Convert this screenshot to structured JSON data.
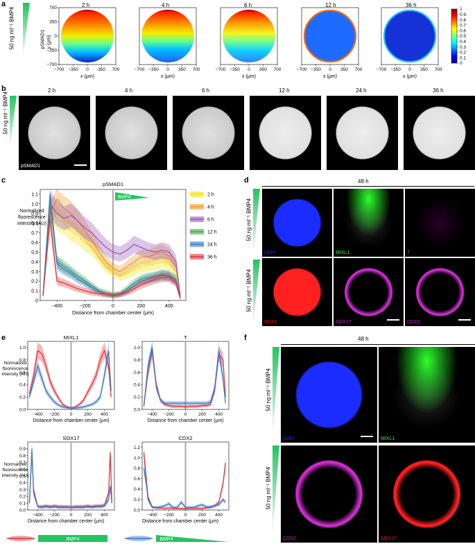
{
  "panel_letters": {
    "a": "a",
    "b": "b",
    "c": "c",
    "d": "d",
    "e": "e",
    "f": "f"
  },
  "bmp4_concentration": "50 ng ml⁻¹ BMP4",
  "panel_a": {
    "times": [
      "2 h",
      "4 h",
      "6 h",
      "12 h",
      "36 h"
    ],
    "ylabel_top": "pSMAD1",
    "ylabel": "y (μm)",
    "xlabel": "x (μm)",
    "xticks": [
      "−700",
      "−350",
      "0",
      "350",
      "700"
    ],
    "yticks": [
      "700",
      "350",
      "0",
      "−350",
      "−700"
    ],
    "colorbar_ticks": [
      "1",
      "0.9",
      "0.8",
      "0.7",
      "0.6",
      "0.5",
      "0.4",
      "0.3",
      "0.2",
      "0.1",
      "0"
    ]
  },
  "panel_b": {
    "times": [
      "2 h",
      "4 h",
      "6 h",
      "12 h",
      "24 h",
      "36 h"
    ],
    "stain": "pSMAD1"
  },
  "panel_c": {
    "title": "pSMAD1",
    "ylabel": "Normalized fluorescence intensity (AU)",
    "xlabel": "Distance from chamber center (μm)",
    "gradient_label": "BMP4",
    "xticks": [
      "−400",
      "−200",
      "0",
      "200",
      "400"
    ],
    "yticks": [
      "0",
      "0.1",
      "0.2",
      "0.3",
      "0.4",
      "0.5",
      "0.6",
      "0.7",
      "0.8",
      "0.9",
      "1.0",
      "1.1"
    ]
  },
  "panel_d": {
    "time": "48 h",
    "labels_row1": [
      "DAPI",
      "MIXL1",
      "T"
    ],
    "labels_row2": [
      "SOX2",
      "SOX17",
      "CDX2"
    ]
  },
  "panel_e": {
    "titles": [
      "MIXL1",
      "T",
      "SOX17",
      "CDX2"
    ],
    "ylabel": "Normalized fluorescence intensity (AU)",
    "xlabel": "Distance from chamber center (μm)",
    "xticks": [
      "−400",
      "−200",
      "0",
      "200",
      "400"
    ],
    "legend_label": "BMP4"
  },
  "panel_f": {
    "time": "48 h",
    "labels_row1": [
      "DAPI",
      "MIXL1"
    ],
    "labels_row2": [
      "CDX2",
      "SOX17"
    ]
  },
  "colors": {
    "bmp4_green": "#22c55e",
    "red_series": "#e0363d",
    "blue_series": "#3a7bc8",
    "dapi": "#1b2cff",
    "mixl1": "#2cff2c",
    "magenta": "#d02cd0",
    "sox2": "#ff2020"
  },
  "chart_data": [
    {
      "type": "line",
      "title": "pSMAD1",
      "xlabel": "Distance from chamber center (μm)",
      "ylabel": "Normalized fluorescence intensity (AU)",
      "xlim": [
        -520,
        520
      ],
      "ylim": [
        0,
        1.15
      ],
      "x": [
        -500,
        -450,
        -400,
        -350,
        -300,
        -250,
        -200,
        -150,
        -100,
        -50,
        0,
        50,
        100,
        150,
        200,
        250,
        300,
        350,
        400,
        450,
        480
      ],
      "series": [
        {
          "name": "2 h",
          "color": "#f2e21b",
          "values": [
            0.05,
            0.95,
            0.85,
            0.8,
            0.72,
            0.68,
            0.6,
            0.55,
            0.45,
            0.35,
            0.3,
            0.25,
            0.28,
            0.32,
            0.35,
            0.37,
            0.38,
            0.4,
            0.38,
            0.3,
            0.05
          ]
        },
        {
          "name": "4 h",
          "color": "#f29a2e",
          "values": [
            0.05,
            0.9,
            1.05,
            0.95,
            0.9,
            0.82,
            0.72,
            0.62,
            0.5,
            0.4,
            0.33,
            0.3,
            0.35,
            0.4,
            0.45,
            0.45,
            0.48,
            0.5,
            0.46,
            0.35,
            0.05
          ]
        },
        {
          "name": "6 h",
          "color": "#9b59b6",
          "values": [
            0.05,
            1.0,
            0.9,
            0.85,
            0.88,
            0.82,
            0.75,
            0.7,
            0.62,
            0.55,
            0.5,
            0.48,
            0.52,
            0.58,
            0.55,
            0.52,
            0.5,
            0.52,
            0.5,
            0.4,
            0.05
          ]
        },
        {
          "name": "12 h",
          "color": "#3cab4b",
          "values": [
            0.05,
            1.05,
            0.4,
            0.35,
            0.3,
            0.25,
            0.2,
            0.15,
            0.1,
            0.08,
            0.06,
            0.07,
            0.12,
            0.18,
            0.22,
            0.24,
            0.25,
            0.27,
            0.26,
            0.22,
            0.03
          ]
        },
        {
          "name": "24 h",
          "color": "#3a7bc8",
          "values": [
            0.05,
            1.1,
            0.38,
            0.32,
            0.28,
            0.22,
            0.18,
            0.13,
            0.09,
            0.06,
            0.05,
            0.06,
            0.1,
            0.15,
            0.2,
            0.22,
            0.24,
            0.26,
            0.25,
            0.2,
            0.03
          ]
        },
        {
          "name": "36 h",
          "color": "#e0363d",
          "values": [
            0.05,
            0.85,
            0.2,
            0.18,
            0.15,
            0.12,
            0.1,
            0.08,
            0.07,
            0.06,
            0.05,
            0.06,
            0.08,
            0.12,
            0.16,
            0.19,
            0.22,
            0.24,
            0.24,
            0.18,
            0.02
          ]
        }
      ]
    },
    {
      "type": "line",
      "title": "MIXL1",
      "xlim": [
        -520,
        520
      ],
      "ylim": [
        0,
        1.1
      ],
      "x": [
        -500,
        -450,
        -400,
        -350,
        -300,
        -250,
        -200,
        -150,
        -100,
        -50,
        0,
        50,
        100,
        150,
        200,
        250,
        300,
        350,
        400,
        450,
        480
      ],
      "series": [
        {
          "color": "#e0363d",
          "values": [
            0.25,
            0.55,
            0.95,
            0.9,
            0.7,
            0.45,
            0.3,
            0.18,
            0.08,
            0.04,
            0.02,
            0.04,
            0.08,
            0.15,
            0.28,
            0.4,
            0.55,
            0.8,
            0.95,
            0.7,
            0.2
          ]
        },
        {
          "color": "#3a7bc8",
          "values": [
            0.2,
            0.45,
            0.7,
            0.5,
            0.3,
            0.2,
            0.12,
            0.07,
            0.04,
            0.03,
            0.02,
            0.02,
            0.03,
            0.04,
            0.06,
            0.08,
            0.12,
            0.2,
            0.55,
            0.95,
            0.3
          ]
        }
      ]
    },
    {
      "type": "line",
      "title": "T",
      "xlim": [
        -520,
        520
      ],
      "ylim": [
        0,
        1.1
      ],
      "x": [
        -500,
        -450,
        -400,
        -350,
        -300,
        -250,
        -200,
        -150,
        -100,
        -50,
        0,
        50,
        100,
        150,
        200,
        250,
        300,
        350,
        400,
        450,
        480
      ],
      "series": [
        {
          "color": "#e0363d",
          "values": [
            0.05,
            0.6,
            0.95,
            0.4,
            0.15,
            0.08,
            0.06,
            0.05,
            0.05,
            0.05,
            0.04,
            0.05,
            0.05,
            0.05,
            0.06,
            0.06,
            0.08,
            0.3,
            0.9,
            0.8,
            0.2
          ]
        },
        {
          "color": "#3a7bc8",
          "values": [
            0.05,
            0.7,
            1.0,
            0.35,
            0.15,
            0.1,
            0.1,
            0.1,
            0.1,
            0.1,
            0.1,
            0.1,
            0.1,
            0.1,
            0.1,
            0.1,
            0.12,
            0.35,
            0.95,
            0.5,
            0.1
          ]
        }
      ]
    },
    {
      "type": "line",
      "title": "SOX17",
      "xlim": [
        -520,
        520
      ],
      "ylim": [
        0,
        1.0
      ],
      "x": [
        -500,
        -470,
        -450,
        -400,
        -350,
        -300,
        -250,
        -200,
        -150,
        -100,
        -50,
        0,
        50,
        100,
        150,
        200,
        250,
        300,
        350,
        400,
        450,
        470,
        490
      ],
      "series": [
        {
          "color": "#e0363d",
          "values": [
            0.1,
            0.85,
            0.3,
            0.05,
            0.05,
            0.06,
            0.05,
            0.06,
            0.05,
            0.05,
            0.05,
            0.04,
            0.05,
            0.05,
            0.05,
            0.06,
            0.05,
            0.06,
            0.06,
            0.07,
            0.25,
            0.85,
            0.1
          ]
        },
        {
          "color": "#3a7bc8",
          "values": [
            0.1,
            0.9,
            0.25,
            0.05,
            0.04,
            0.05,
            0.04,
            0.05,
            0.04,
            0.04,
            0.04,
            0.04,
            0.04,
            0.04,
            0.04,
            0.05,
            0.04,
            0.05,
            0.05,
            0.06,
            0.15,
            0.35,
            0.1
          ]
        }
      ]
    },
    {
      "type": "line",
      "title": "CDX2",
      "xlim": [
        -520,
        520
      ],
      "ylim": [
        0,
        1.3
      ],
      "x": [
        -500,
        -470,
        -450,
        -400,
        -350,
        -300,
        -250,
        -200,
        -150,
        -100,
        -50,
        0,
        50,
        100,
        150,
        200,
        250,
        300,
        350,
        400,
        450,
        480
      ],
      "series": [
        {
          "color": "#e0363d",
          "values": [
            1.1,
            0.6,
            0.25,
            0.06,
            0.04,
            0.04,
            0.03,
            0.04,
            0.03,
            0.03,
            0.03,
            0.02,
            0.03,
            0.03,
            0.03,
            0.03,
            0.04,
            0.05,
            0.08,
            0.15,
            0.5,
            0.9
          ]
        },
        {
          "color": "#3a7bc8",
          "values": [
            0.8,
            0.5,
            0.2,
            0.05,
            0.05,
            0.06,
            0.08,
            0.12,
            0.05,
            0.05,
            0.15,
            0.05,
            0.05,
            0.05,
            0.08,
            0.1,
            0.06,
            0.06,
            0.08,
            0.1,
            0.2,
            0.15
          ]
        }
      ]
    }
  ]
}
